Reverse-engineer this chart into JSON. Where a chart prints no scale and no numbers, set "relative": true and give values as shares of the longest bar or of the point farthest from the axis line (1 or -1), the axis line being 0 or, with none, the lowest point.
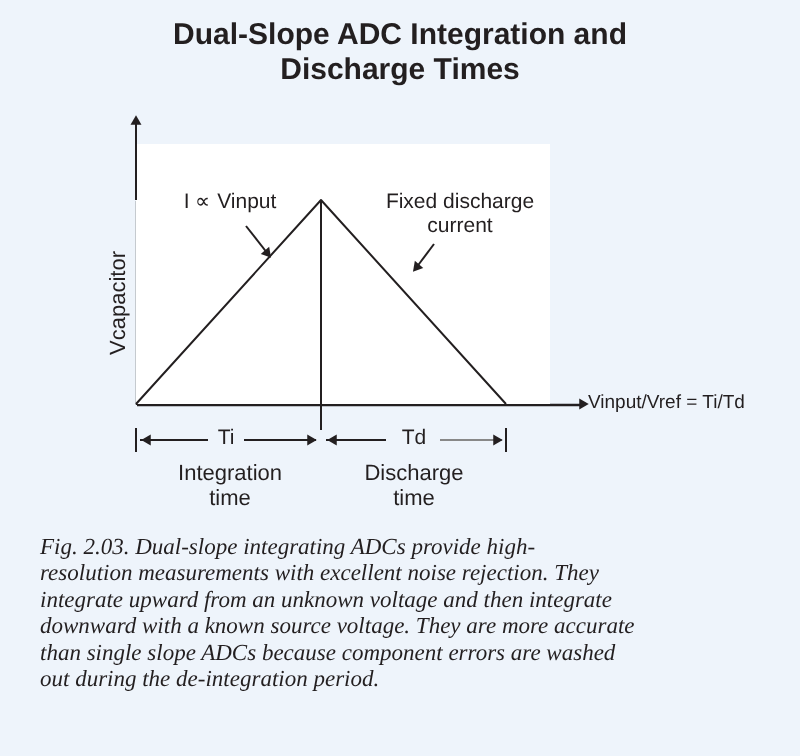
{
  "chart_data": {
    "type": "line",
    "title": "Dual-Slope ADC Integration and Discharge Times",
    "ylabel": "Vcapacitor",
    "relative": true,
    "categories": [
      null,
      null,
      null
    ],
    "series": [
      {
        "color": "#231f20",
        "values": [
          0,
          1,
          0
        ]
      }
    ],
    "marker": "none",
    "line_style": "solid",
    "grid": false,
    "annotations": [
      "I ∝ Vinput",
      "Fixed discharge current",
      "Ti",
      "Td",
      "Integration time",
      "Discharge time",
      "Vinput/Vref = Ti/Td",
      "Fig. 2.03. Dual-slope integrating ADCs provide high-resolution measurements with excellent noise rejection. They integrate upward from an unknown voltage and then integrate downward with a known source voltage. They are more accurate than single slope ADCs because component errors are washed out during the de-integration period."
    ]
  }
}
